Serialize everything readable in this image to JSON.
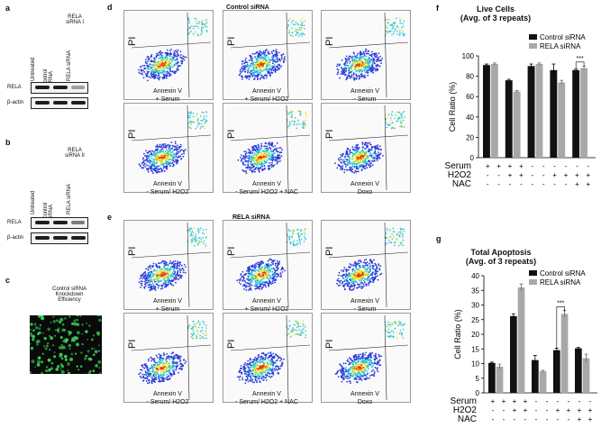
{
  "panel_a": {
    "label": "a",
    "title_lines": [
      "RELA",
      "siRNA I"
    ],
    "lanes": [
      "Untreated",
      "Control siRNA",
      "RELA siRNA"
    ],
    "blots": [
      "RELA",
      "β-actin"
    ],
    "rela_band_levels": [
      1.0,
      1.0,
      0.25
    ],
    "actin_band_levels": [
      1.0,
      1.0,
      1.0
    ]
  },
  "panel_b": {
    "label": "b",
    "title_lines": [
      "RELA",
      "siRNA II"
    ],
    "lanes": [
      "Untreated",
      "Control siRNA",
      "RELA siRNA"
    ],
    "blots": [
      "RELA",
      "β-actin"
    ],
    "rela_band_levels": [
      1.0,
      1.0,
      0.45
    ],
    "actin_band_levels": [
      1.0,
      1.0,
      1.0
    ]
  },
  "panel_c": {
    "label": "c",
    "caption_lines": [
      "Control siRNA",
      "Knockdown",
      "Efficiency"
    ]
  },
  "panel_d": {
    "label": "d",
    "title": "Control siRNA",
    "xaxis": "Annexin V",
    "yaxis": "PI",
    "conditions": [
      "+ Serum",
      "+ Serum/ H2O2",
      "- Serum",
      "- Serum/ H2O2",
      "- Serum/ H2O2 + NAC",
      "Doxo"
    ]
  },
  "panel_e": {
    "label": "e",
    "title": "RELA siRNA",
    "xaxis": "Annexin V",
    "yaxis": "PI",
    "conditions": [
      "+ Serum",
      "+ Serum/ H2O2",
      "- Serum",
      "- Serum/ H2O2",
      "- Serum/ H2O2 + NAC",
      "Doxo"
    ]
  },
  "colors": {
    "control": "#111111",
    "rela": "#a8a8a8",
    "flow_low": "#2a3cd8",
    "flow_mid": "#27c6d8",
    "flow_high": "#f2e21a",
    "flow_peak": "#e23a1a",
    "gfp": "#39d65a"
  },
  "chart_data": [
    {
      "label": "f",
      "type": "bar",
      "title": "Live Cells",
      "subtitle": "(Avg. of 3 repeats)",
      "ylabel": "Cell Ratio (%)",
      "ylim": [
        0,
        100
      ],
      "yticks": [
        0,
        20,
        40,
        60,
        80,
        100
      ],
      "legend": [
        "Control siRNA",
        "RELA siRNA"
      ],
      "legend_position": "top-right",
      "significance": "***",
      "significance_group": 4,
      "series": [
        {
          "name": "Control siRNA",
          "values": [
            91,
            76,
            90,
            86,
            86
          ]
        },
        {
          "name": "RELA siRNA",
          "values": [
            92,
            65,
            92,
            74,
            88
          ]
        }
      ],
      "errors": [
        [
          1,
          1,
          2,
          6,
          1
        ],
        [
          1,
          1,
          1,
          2,
          2
        ]
      ],
      "condition_rows": [
        {
          "name": "Serum",
          "values": [
            "+",
            "+",
            "+",
            "+",
            "-",
            "-",
            "-",
            "-",
            "-",
            "-"
          ]
        },
        {
          "name": "H2O2",
          "values": [
            "-",
            "-",
            "+",
            "+",
            "-",
            "-",
            "+",
            "+",
            "+",
            "+"
          ]
        },
        {
          "name": "NAC",
          "values": [
            "-",
            "-",
            "-",
            "-",
            "-",
            "-",
            "-",
            "-",
            "+",
            "+"
          ]
        }
      ]
    },
    {
      "label": "g",
      "type": "bar",
      "title": "Total Apoptosis",
      "subtitle": "(Avg. of 3 repeats)",
      "ylabel": "Cell Ratio (%)",
      "ylim": [
        0,
        40
      ],
      "yticks": [
        0,
        5,
        10,
        15,
        20,
        25,
        30,
        35,
        40
      ],
      "legend": [
        "Control siRNA",
        "RELA siRNA"
      ],
      "legend_position": "top-right",
      "significance": "***",
      "significance_group": 3,
      "series": [
        {
          "name": "Control siRNA",
          "values": [
            10.2,
            26.2,
            11.2,
            14.6,
            15.2
          ]
        },
        {
          "name": "RELA siRNA",
          "values": [
            9.0,
            36.0,
            7.4,
            27.0,
            11.8
          ]
        }
      ],
      "errors": [
        [
          0.3,
          0.8,
          1.6,
          0.6,
          0.3
        ],
        [
          0.8,
          1.2,
          0.3,
          1.2,
          1.4
        ]
      ],
      "condition_rows": [
        {
          "name": "Serum",
          "values": [
            "+",
            "+",
            "+",
            "+",
            "-",
            "-",
            "-",
            "-",
            "-",
            "-"
          ]
        },
        {
          "name": "H2O2",
          "values": [
            "-",
            "-",
            "+",
            "+",
            "-",
            "-",
            "+",
            "+",
            "+",
            "+"
          ]
        },
        {
          "name": "NAC",
          "values": [
            "-",
            "-",
            "-",
            "-",
            "-",
            "-",
            "-",
            "-",
            "+",
            "+"
          ]
        }
      ]
    }
  ]
}
